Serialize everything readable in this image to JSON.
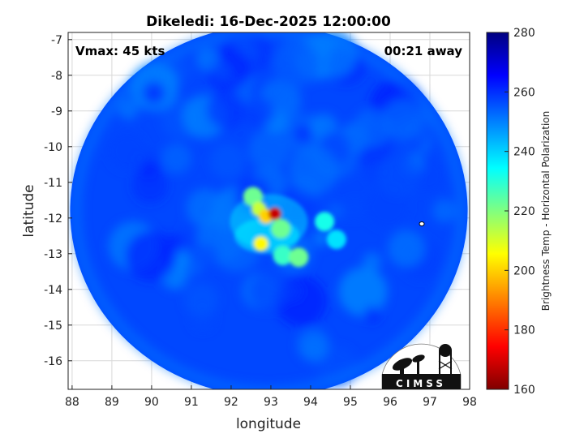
{
  "chart_data": {
    "type": "heatmap",
    "title": "Dikeledi: 16-Dec-2025 12:00:00",
    "xlabel": "longitude",
    "ylabel": "latitude",
    "xlim": [
      87.9,
      98.0
    ],
    "ylim": [
      -16.8,
      -6.8
    ],
    "x_ticks": [
      88,
      89,
      90,
      91,
      92,
      93,
      94,
      95,
      96,
      97,
      98
    ],
    "y_ticks": [
      -7,
      -8,
      -9,
      -10,
      -11,
      -12,
      -13,
      -14,
      -15,
      -16
    ],
    "grid": true,
    "annotations": {
      "vmax": "Vmax: 45 kts",
      "offset": "00:21 away"
    },
    "logo_text": "CIMSS",
    "colorbar": {
      "label": "Brightness Temp - Horizontal Polarization",
      "min": 160,
      "max": 280,
      "ticks": [
        160,
        180,
        200,
        220,
        240,
        260,
        280
      ],
      "colors": [
        "#800000",
        "#ff0000",
        "#ff8000",
        "#ffff00",
        "#80ff80",
        "#00ffff",
        "#0080ff",
        "#0000ff",
        "#000080"
      ]
    },
    "swath": {
      "center_lon": 92.95,
      "center_lat": -11.8,
      "radius_lon": 5.0,
      "radius_lat": 5.2
    },
    "background_value": 255,
    "features": [
      {
        "lon": 93.1,
        "lat": -11.88,
        "value": 168
      },
      {
        "lon": 92.88,
        "lat": -11.95,
        "value": 200
      },
      {
        "lon": 92.7,
        "lat": -11.75,
        "value": 212
      },
      {
        "lon": 92.75,
        "lat": -12.72,
        "value": 205
      },
      {
        "lon": 93.25,
        "lat": -12.3,
        "value": 222
      },
      {
        "lon": 92.55,
        "lat": -11.4,
        "value": 222
      },
      {
        "lon": 93.7,
        "lat": -13.1,
        "value": 222
      },
      {
        "lon": 93.3,
        "lat": -13.05,
        "value": 228
      },
      {
        "lon": 94.35,
        "lat": -12.1,
        "value": 232
      },
      {
        "lon": 94.65,
        "lat": -12.6,
        "value": 238
      }
    ]
  }
}
